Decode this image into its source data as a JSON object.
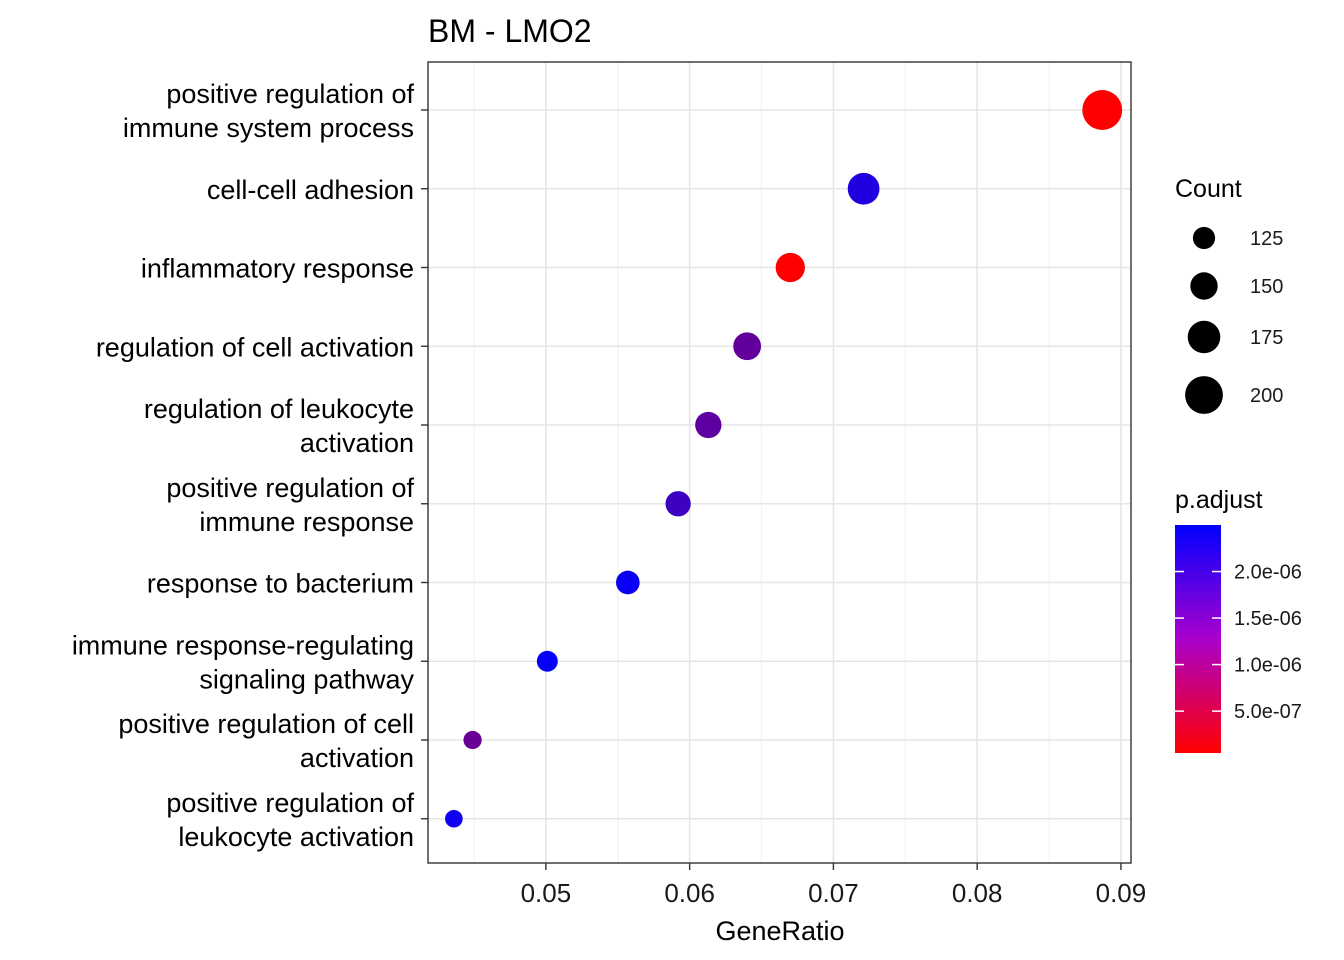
{
  "chart_data": {
    "type": "scatter",
    "title": "BM - LMO2",
    "xlabel": "GeneRatio",
    "ylabel": "",
    "xlim": [
      0.0418,
      0.0907
    ],
    "x_ticks": [
      {
        "value": 0.05,
        "label": "0.05"
      },
      {
        "value": 0.06,
        "label": "0.06"
      },
      {
        "value": 0.07,
        "label": "0.07"
      },
      {
        "value": 0.08,
        "label": "0.08"
      },
      {
        "value": 0.09,
        "label": "0.09"
      }
    ],
    "grid": true,
    "categories": [
      {
        "lines": [
          "positive regulation of",
          "immune system process"
        ],
        "gene_ratio": 0.0887,
        "count": 210,
        "p_adjust": 5e-08
      },
      {
        "lines": [
          "cell-cell adhesion"
        ],
        "gene_ratio": 0.0721,
        "count": 171,
        "p_adjust": 2.2e-06
      },
      {
        "lines": [
          "inflammatory response"
        ],
        "gene_ratio": 0.067,
        "count": 159,
        "p_adjust": 5e-08
      },
      {
        "lines": [
          "regulation of cell activation"
        ],
        "gene_ratio": 0.064,
        "count": 152,
        "p_adjust": 1.55e-06
      },
      {
        "lines": [
          "regulation of leukocyte",
          "activation"
        ],
        "gene_ratio": 0.0613,
        "count": 145,
        "p_adjust": 1.6e-06
      },
      {
        "lines": [
          "positive regulation of",
          "immune response"
        ],
        "gene_ratio": 0.0592,
        "count": 140,
        "p_adjust": 1.9e-06
      },
      {
        "lines": [
          "response to bacterium"
        ],
        "gene_ratio": 0.0557,
        "count": 132,
        "p_adjust": 2.4e-06
      },
      {
        "lines": [
          "immune response-regulating",
          "signaling pathway"
        ],
        "gene_ratio": 0.0501,
        "count": 119,
        "p_adjust": 2.45e-06
      },
      {
        "lines": [
          "positive regulation of cell",
          "activation"
        ],
        "gene_ratio": 0.0449,
        "count": 106,
        "p_adjust": 1.5e-06
      },
      {
        "lines": [
          "positive regulation of",
          "leukocyte activation"
        ],
        "gene_ratio": 0.0436,
        "count": 103,
        "p_adjust": 2.35e-06
      }
    ],
    "size_legend": {
      "title": "Count",
      "entries": [
        {
          "value": 125,
          "label": "125"
        },
        {
          "value": 150,
          "label": "150"
        },
        {
          "value": 175,
          "label": "175"
        },
        {
          "value": 200,
          "label": "200"
        }
      ]
    },
    "color_legend": {
      "title": "p.adjust",
      "range": [
        5e-08,
        2.5e-06
      ],
      "low_color": "#ff0000",
      "high_color": "#0000ff",
      "ticks": [
        {
          "value": 5e-07,
          "label": "5.0e-07"
        },
        {
          "value": 1e-06,
          "label": "1.0e-06"
        },
        {
          "value": 1.5e-06,
          "label": "1.5e-06"
        },
        {
          "value": 2e-06,
          "label": "2.0e-06"
        }
      ]
    },
    "legend_position": "right"
  }
}
